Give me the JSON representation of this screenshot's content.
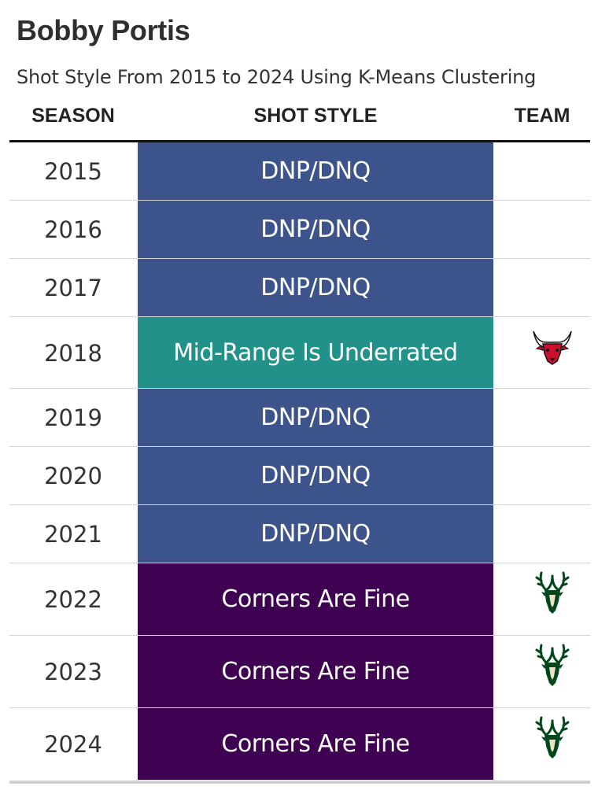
{
  "title": "Bobby Portis",
  "subtitle": "Shot Style From 2015 to 2024 Using K-Means Clustering",
  "headers": {
    "season": "SEASON",
    "shot_style": "SHOT STYLE",
    "team": "TEAM"
  },
  "colors": {
    "DNP/DNQ": "#3c538b",
    "Mid-Range Is Underrated": "#22918a",
    "Corners Are Fine": "#3f0151"
  },
  "chart_data": {
    "type": "table",
    "columns": [
      "SEASON",
      "SHOT STYLE",
      "TEAM"
    ],
    "rows": [
      {
        "season": "2015",
        "shot_style": "DNP/DNQ",
        "team_logo": ""
      },
      {
        "season": "2016",
        "shot_style": "DNP/DNQ",
        "team_logo": ""
      },
      {
        "season": "2017",
        "shot_style": "DNP/DNQ",
        "team_logo": ""
      },
      {
        "season": "2018",
        "shot_style": "Mid-Range Is Underrated",
        "team_logo": "bulls-logo"
      },
      {
        "season": "2019",
        "shot_style": "DNP/DNQ",
        "team_logo": ""
      },
      {
        "season": "2020",
        "shot_style": "DNP/DNQ",
        "team_logo": ""
      },
      {
        "season": "2021",
        "shot_style": "DNP/DNQ",
        "team_logo": ""
      },
      {
        "season": "2022",
        "shot_style": "Corners Are Fine",
        "team_logo": "bucks-logo"
      },
      {
        "season": "2023",
        "shot_style": "Corners Are Fine",
        "team_logo": "bucks-logo"
      },
      {
        "season": "2024",
        "shot_style": "Corners Are Fine",
        "team_logo": "bucks-logo"
      }
    ]
  }
}
